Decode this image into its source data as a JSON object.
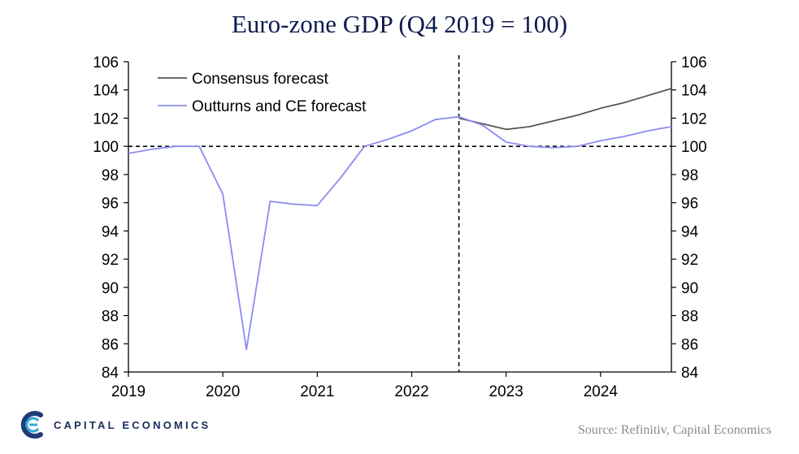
{
  "title": "Euro-zone GDP (Q4 2019 = 100)",
  "source": "Source: Refinitiv, Capital Economics",
  "brand": {
    "name": "CAPITAL ECONOMICS",
    "logo_icon": "capital-economics-logo-icon"
  },
  "chart_data": {
    "type": "line",
    "title": "Euro-zone GDP (Q4 2019 = 100)",
    "xlabel": "",
    "ylabel": "",
    "x_ticks": [
      "2019",
      "2020",
      "2021",
      "2022",
      "2023",
      "2024"
    ],
    "y_ticks": [
      "84",
      "86",
      "88",
      "90",
      "92",
      "94",
      "96",
      "98",
      "100",
      "102",
      "104",
      "106"
    ],
    "xlim": [
      2019.0,
      2024.75
    ],
    "ylim": [
      84,
      106
    ],
    "dual_y_axis": true,
    "legend_position": "top-left",
    "reference_lines": [
      {
        "orientation": "horizontal",
        "value": 100,
        "style": "dashed"
      },
      {
        "orientation": "vertical",
        "value": 2022.5,
        "style": "dashed"
      }
    ],
    "series": [
      {
        "name": "Consensus forecast",
        "color": "#555555",
        "x": [
          2022.5,
          2022.75,
          2023.0,
          2023.25,
          2023.5,
          2023.75,
          2024.0,
          2024.25,
          2024.5,
          2024.75
        ],
        "y": [
          102.0,
          101.6,
          101.2,
          101.4,
          101.8,
          102.2,
          102.7,
          103.1,
          103.6,
          104.1
        ]
      },
      {
        "name": "Outturns and CE forecast",
        "color": "#8c8cf0",
        "x": [
          2019.0,
          2019.25,
          2019.5,
          2019.75,
          2020.0,
          2020.25,
          2020.5,
          2020.75,
          2021.0,
          2021.25,
          2021.5,
          2021.75,
          2022.0,
          2022.25,
          2022.5,
          2022.75,
          2023.0,
          2023.25,
          2023.5,
          2023.75,
          2024.0,
          2024.25,
          2024.5,
          2024.75
        ],
        "y": [
          99.5,
          99.8,
          100.0,
          100.0,
          96.6,
          85.6,
          96.1,
          95.9,
          95.8,
          97.8,
          100.0,
          100.5,
          101.1,
          101.9,
          102.1,
          101.5,
          100.3,
          100.0,
          99.9,
          100.0,
          100.4,
          100.7,
          101.1,
          101.4
        ]
      }
    ]
  }
}
